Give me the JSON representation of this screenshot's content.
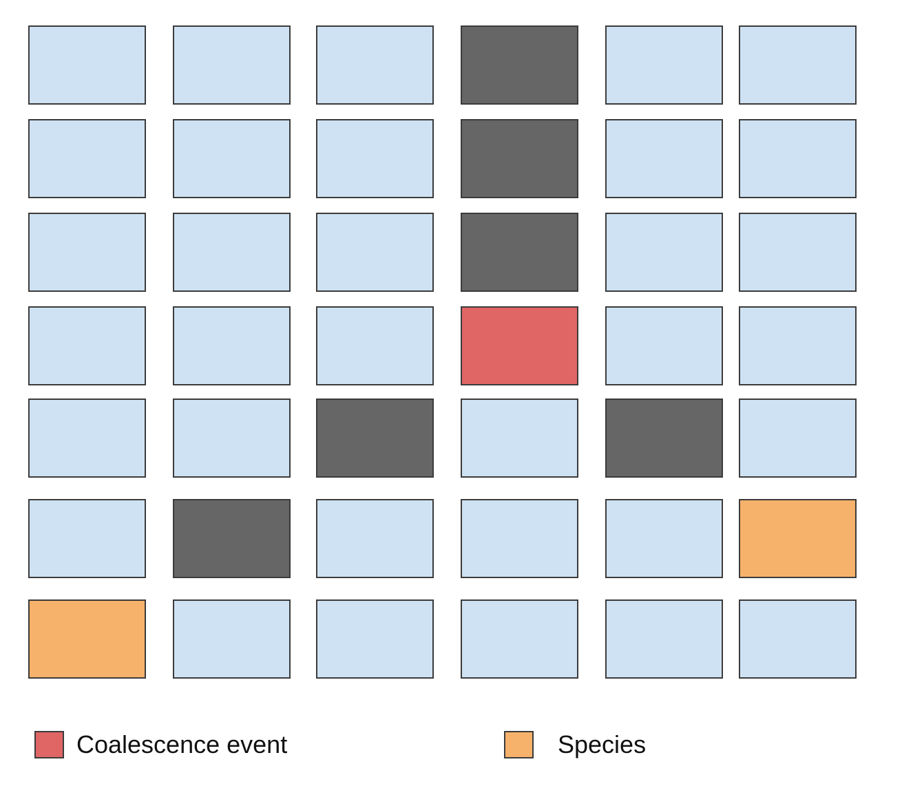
{
  "colors": {
    "empty": "#cfe2f3",
    "dark": "#666666",
    "coalescence": "#e06666",
    "species": "#f6b26b",
    "border": "#3b3b3b"
  },
  "grid": {
    "rows": 7,
    "cols": 6,
    "cells": [
      [
        "empty",
        "empty",
        "empty",
        "dark",
        "empty",
        "empty"
      ],
      [
        "empty",
        "empty",
        "empty",
        "dark",
        "empty",
        "empty"
      ],
      [
        "empty",
        "empty",
        "empty",
        "dark",
        "empty",
        "empty"
      ],
      [
        "empty",
        "empty",
        "empty",
        "coalescence",
        "empty",
        "empty"
      ],
      [
        "empty",
        "empty",
        "dark",
        "empty",
        "dark",
        "empty"
      ],
      [
        "empty",
        "dark",
        "empty",
        "empty",
        "empty",
        "species"
      ],
      [
        "species",
        "empty",
        "empty",
        "empty",
        "empty",
        "empty"
      ]
    ]
  },
  "legend": {
    "coalescence": {
      "label": "Coalescence event",
      "color": "#e06666"
    },
    "species": {
      "label": "Species",
      "color": "#f6b26b"
    }
  }
}
